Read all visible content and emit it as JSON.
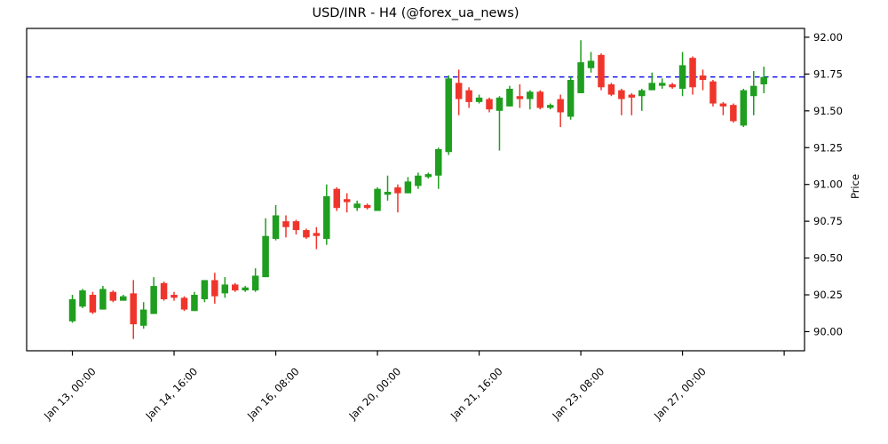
{
  "title": "USD/INR - H4 (@forex_ua_news)",
  "chart_data": {
    "type": "candlestick",
    "title": "USD/INR - H4 (@forex_ua_news)",
    "ylabel": "Price",
    "xlabel": "",
    "grid": false,
    "legend": null,
    "xlim": [
      -4.5,
      72
    ],
    "ylim": [
      89.87,
      92.06
    ],
    "y_ticks": [
      92.0,
      91.75,
      91.5,
      91.25,
      91.0,
      90.75,
      90.5,
      90.25,
      90.0
    ],
    "x_ticks": {
      "indices": [
        0,
        10,
        20,
        30,
        40,
        50,
        60,
        70
      ],
      "labels": [
        "Jan 13, 00:00",
        "Jan 14, 16:00",
        "Jan 16, 08:00",
        "Jan 20, 00:00",
        "Jan 21, 16:00",
        "Jan 23, 08:00",
        "Jan 27, 00:00",
        ""
      ]
    },
    "hline": {
      "value": 91.73,
      "color": "#0b0bee",
      "style": "dashed",
      "name": "resistance-level"
    },
    "colors": {
      "up": "#1f9e1f",
      "down": "#ef352b",
      "axis": "#000000",
      "background": "#ffffff"
    },
    "columns": [
      "time",
      "open",
      "high",
      "low",
      "close"
    ],
    "candles": [
      [
        "Jan 13 00:00",
        90.07,
        90.25,
        90.06,
        90.22
      ],
      [
        "Jan 13 04:00",
        90.17,
        90.29,
        90.16,
        90.28
      ],
      [
        "Jan 13 08:00",
        90.25,
        90.27,
        90.12,
        90.13
      ],
      [
        "Jan 13 12:00",
        90.15,
        90.31,
        90.15,
        90.29
      ],
      [
        "Jan 13 16:00",
        90.27,
        90.28,
        90.2,
        90.21
      ],
      [
        "Jan 13 20:00",
        90.21,
        90.25,
        90.21,
        90.24
      ],
      [
        "Jan 14 00:00",
        90.26,
        90.35,
        89.95,
        90.05
      ],
      [
        "Jan 14 04:00",
        90.04,
        90.2,
        90.02,
        90.15
      ],
      [
        "Jan 14 08:00",
        90.12,
        90.37,
        90.12,
        90.31
      ],
      [
        "Jan 14 12:00",
        90.33,
        90.34,
        90.21,
        90.22
      ],
      [
        "Jan 14 16:00",
        90.25,
        90.27,
        90.21,
        90.23
      ],
      [
        "Jan 14 20:00",
        90.23,
        90.24,
        90.14,
        90.15
      ],
      [
        "Jan 15 00:00",
        90.14,
        90.27,
        90.14,
        90.25
      ],
      [
        "Jan 15 04:00",
        90.22,
        90.35,
        90.2,
        90.35
      ],
      [
        "Jan 15 08:00",
        90.35,
        90.4,
        90.19,
        90.24
      ],
      [
        "Jan 15 12:00",
        90.26,
        90.37,
        90.23,
        90.32
      ],
      [
        "Jan 15 16:00",
        90.32,
        90.33,
        90.27,
        90.28
      ],
      [
        "Jan 15 20:00",
        90.28,
        90.31,
        90.27,
        90.3
      ],
      [
        "Jan 16 00:00",
        90.28,
        90.43,
        90.27,
        90.38
      ],
      [
        "Jan 16 04:00",
        90.37,
        90.77,
        90.37,
        90.65
      ],
      [
        "Jan 16 08:00",
        90.63,
        90.86,
        90.62,
        90.79
      ],
      [
        "Jan 16 12:00",
        90.75,
        90.79,
        90.64,
        90.71
      ],
      [
        "Jan 16 16:00",
        90.75,
        90.76,
        90.66,
        90.69
      ],
      [
        "Jan 16 20:00",
        90.69,
        90.7,
        90.63,
        90.64
      ],
      [
        "Jan 17 00:00",
        90.67,
        90.71,
        90.56,
        90.65
      ],
      [
        "Jan 17 04:00",
        90.63,
        91.0,
        90.59,
        90.92
      ],
      [
        "Jan 17 08:00",
        90.97,
        90.98,
        90.82,
        90.84
      ],
      [
        "Jan 17 12:00",
        90.9,
        90.94,
        90.81,
        90.88
      ],
      [
        "Jan 17 16:00",
        90.84,
        90.89,
        90.82,
        90.87
      ],
      [
        "Jan 17 20:00",
        90.86,
        90.87,
        90.83,
        90.84
      ],
      [
        "Jan 20 00:00",
        90.82,
        90.98,
        90.82,
        90.97
      ],
      [
        "Jan 20 04:00",
        90.93,
        91.06,
        90.89,
        90.95
      ],
      [
        "Jan 20 08:00",
        90.98,
        91.0,
        90.81,
        90.94
      ],
      [
        "Jan 20 12:00",
        90.94,
        91.05,
        90.94,
        91.02
      ],
      [
        "Jan 20 16:00",
        90.99,
        91.08,
        90.97,
        91.06
      ],
      [
        "Jan 20 20:00",
        91.05,
        91.08,
        91.04,
        91.07
      ],
      [
        "Jan 21 00:00",
        91.06,
        91.25,
        90.97,
        91.24
      ],
      [
        "Jan 21 04:00",
        91.22,
        91.74,
        91.2,
        91.72
      ],
      [
        "Jan 21 08:00",
        91.69,
        91.78,
        91.47,
        91.58
      ],
      [
        "Jan 21 12:00",
        91.64,
        91.66,
        91.52,
        91.56
      ],
      [
        "Jan 21 16:00",
        91.56,
        91.61,
        91.55,
        91.59
      ],
      [
        "Jan 21 20:00",
        91.58,
        91.59,
        91.49,
        91.51
      ],
      [
        "Jan 22 00:00",
        91.5,
        91.6,
        91.23,
        91.59
      ],
      [
        "Jan 22 04:00",
        91.53,
        91.67,
        91.53,
        91.65
      ],
      [
        "Jan 22 08:00",
        91.6,
        91.68,
        91.52,
        91.58
      ],
      [
        "Jan 22 12:00",
        91.58,
        91.64,
        91.51,
        91.63
      ],
      [
        "Jan 22 16:00",
        91.63,
        91.64,
        91.51,
        91.52
      ],
      [
        "Jan 22 20:00",
        91.52,
        91.55,
        91.51,
        91.54
      ],
      [
        "Jan 23 00:00",
        91.58,
        91.61,
        91.39,
        91.49
      ],
      [
        "Jan 23 04:00",
        91.46,
        91.73,
        91.44,
        91.71
      ],
      [
        "Jan 23 08:00",
        91.62,
        91.98,
        91.62,
        91.83
      ],
      [
        "Jan 23 12:00",
        91.79,
        91.9,
        91.76,
        91.84
      ],
      [
        "Jan 23 16:00",
        91.88,
        91.89,
        91.64,
        91.66
      ],
      [
        "Jan 23 20:00",
        91.68,
        91.69,
        91.6,
        91.61
      ],
      [
        "Jan 24 00:00",
        91.64,
        91.65,
        91.47,
        91.58
      ],
      [
        "Jan 24 04:00",
        91.61,
        91.62,
        91.47,
        91.59
      ],
      [
        "Jan 24 08:00",
        91.6,
        91.65,
        91.5,
        91.64
      ],
      [
        "Jan 24 12:00",
        91.64,
        91.76,
        91.64,
        91.69
      ],
      [
        "Jan 24 16:00",
        91.67,
        91.72,
        91.65,
        91.69
      ],
      [
        "Jan 24 20:00",
        91.68,
        91.69,
        91.65,
        91.66
      ],
      [
        "Jan 27 00:00",
        91.65,
        91.9,
        91.6,
        91.81
      ],
      [
        "Jan 27 04:00",
        91.86,
        91.87,
        91.61,
        91.66
      ],
      [
        "Jan 27 08:00",
        91.74,
        91.78,
        91.64,
        91.71
      ],
      [
        "Jan 27 12:00",
        91.7,
        91.71,
        91.53,
        91.55
      ],
      [
        "Jan 27 16:00",
        91.55,
        91.56,
        91.47,
        91.53
      ],
      [
        "Jan 27 20:00",
        91.54,
        91.55,
        91.42,
        91.43
      ],
      [
        "Jan 28 00:00",
        91.4,
        91.65,
        91.39,
        91.64
      ],
      [
        "Jan 28 04:00",
        91.6,
        91.77,
        91.47,
        91.67
      ],
      [
        "Jan 28 08:00",
        91.68,
        91.8,
        91.62,
        91.73
      ]
    ]
  }
}
